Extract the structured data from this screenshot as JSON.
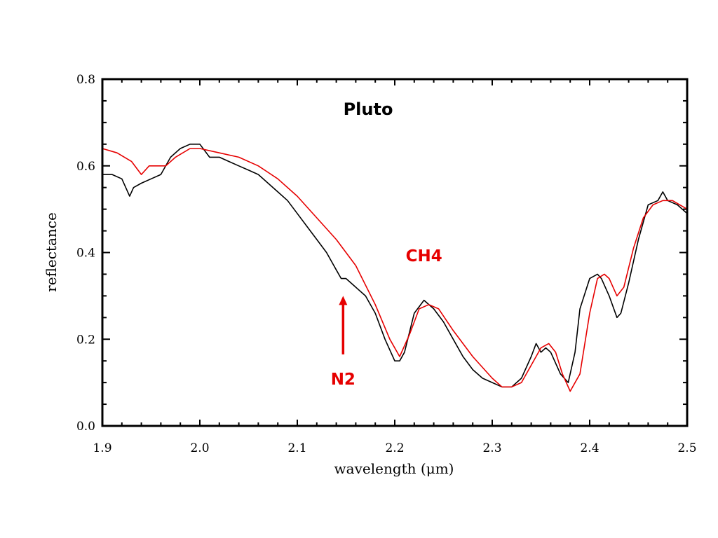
{
  "chart_data": {
    "type": "line",
    "title": "Pluto",
    "xlabel": "wavelength (μm)",
    "ylabel": "reflectance",
    "xlim": [
      1.9,
      2.5
    ],
    "ylim": [
      0.0,
      0.8
    ],
    "xticks": [
      "1.9",
      "2.0",
      "2.1",
      "2.2",
      "2.3",
      "2.4",
      "2.5"
    ],
    "yticks": [
      "0.0",
      "0.2",
      "0.4",
      "0.6",
      "0.8"
    ],
    "grid": false,
    "series": [
      {
        "color": "#000000",
        "x": [
          1.9,
          1.91,
          1.92,
          1.928,
          1.932,
          1.94,
          1.95,
          1.96,
          1.97,
          1.98,
          1.99,
          2.0,
          2.01,
          2.02,
          2.03,
          2.04,
          2.05,
          2.06,
          2.07,
          2.08,
          2.09,
          2.1,
          2.11,
          2.12,
          2.13,
          2.14,
          2.145,
          2.15,
          2.16,
          2.17,
          2.18,
          2.19,
          2.2,
          2.205,
          2.21,
          2.22,
          2.23,
          2.24,
          2.25,
          2.26,
          2.27,
          2.28,
          2.29,
          2.3,
          2.31,
          2.32,
          2.33,
          2.34,
          2.345,
          2.35,
          2.355,
          2.36,
          2.37,
          2.378,
          2.385,
          2.39,
          2.4,
          2.408,
          2.412,
          2.42,
          2.428,
          2.432,
          2.44,
          2.45,
          2.46,
          2.47,
          2.475,
          2.48,
          2.49,
          2.5
        ],
        "y": [
          0.58,
          0.58,
          0.57,
          0.53,
          0.55,
          0.56,
          0.57,
          0.58,
          0.62,
          0.64,
          0.65,
          0.65,
          0.62,
          0.62,
          0.61,
          0.6,
          0.59,
          0.58,
          0.56,
          0.54,
          0.52,
          0.49,
          0.46,
          0.43,
          0.4,
          0.36,
          0.34,
          0.34,
          0.32,
          0.3,
          0.26,
          0.2,
          0.15,
          0.15,
          0.17,
          0.26,
          0.29,
          0.27,
          0.24,
          0.2,
          0.16,
          0.13,
          0.11,
          0.1,
          0.09,
          0.09,
          0.11,
          0.16,
          0.19,
          0.17,
          0.18,
          0.17,
          0.12,
          0.1,
          0.17,
          0.27,
          0.34,
          0.35,
          0.34,
          0.3,
          0.25,
          0.26,
          0.33,
          0.43,
          0.51,
          0.52,
          0.54,
          0.52,
          0.51,
          0.49
        ]
      },
      {
        "color": "#e60000",
        "x": [
          1.9,
          1.915,
          1.93,
          1.94,
          1.948,
          1.955,
          1.965,
          1.975,
          1.99,
          2.0,
          2.02,
          2.04,
          2.06,
          2.08,
          2.1,
          2.12,
          2.14,
          2.16,
          2.18,
          2.195,
          2.205,
          2.215,
          2.225,
          2.235,
          2.245,
          2.26,
          2.28,
          2.3,
          2.31,
          2.32,
          2.33,
          2.34,
          2.35,
          2.358,
          2.365,
          2.372,
          2.38,
          2.39,
          2.4,
          2.408,
          2.415,
          2.42,
          2.428,
          2.435,
          2.445,
          2.455,
          2.465,
          2.475,
          2.485,
          2.5
        ],
        "y": [
          0.64,
          0.63,
          0.61,
          0.58,
          0.6,
          0.6,
          0.6,
          0.62,
          0.64,
          0.64,
          0.63,
          0.62,
          0.6,
          0.57,
          0.53,
          0.48,
          0.43,
          0.37,
          0.28,
          0.2,
          0.16,
          0.21,
          0.27,
          0.28,
          0.27,
          0.22,
          0.16,
          0.11,
          0.09,
          0.09,
          0.1,
          0.14,
          0.18,
          0.19,
          0.17,
          0.12,
          0.08,
          0.12,
          0.26,
          0.34,
          0.35,
          0.34,
          0.3,
          0.32,
          0.41,
          0.48,
          0.51,
          0.52,
          0.52,
          0.5
        ]
      }
    ],
    "annotations": [
      {
        "text": "CH4",
        "x": 2.23,
        "y": 0.38,
        "color": "#e60000"
      },
      {
        "text": "N2",
        "x": 2.147,
        "y": 0.095,
        "color": "#e60000",
        "arrow_from": [
          2.147,
          0.165
        ],
        "arrow_to": [
          2.147,
          0.3
        ]
      }
    ]
  }
}
